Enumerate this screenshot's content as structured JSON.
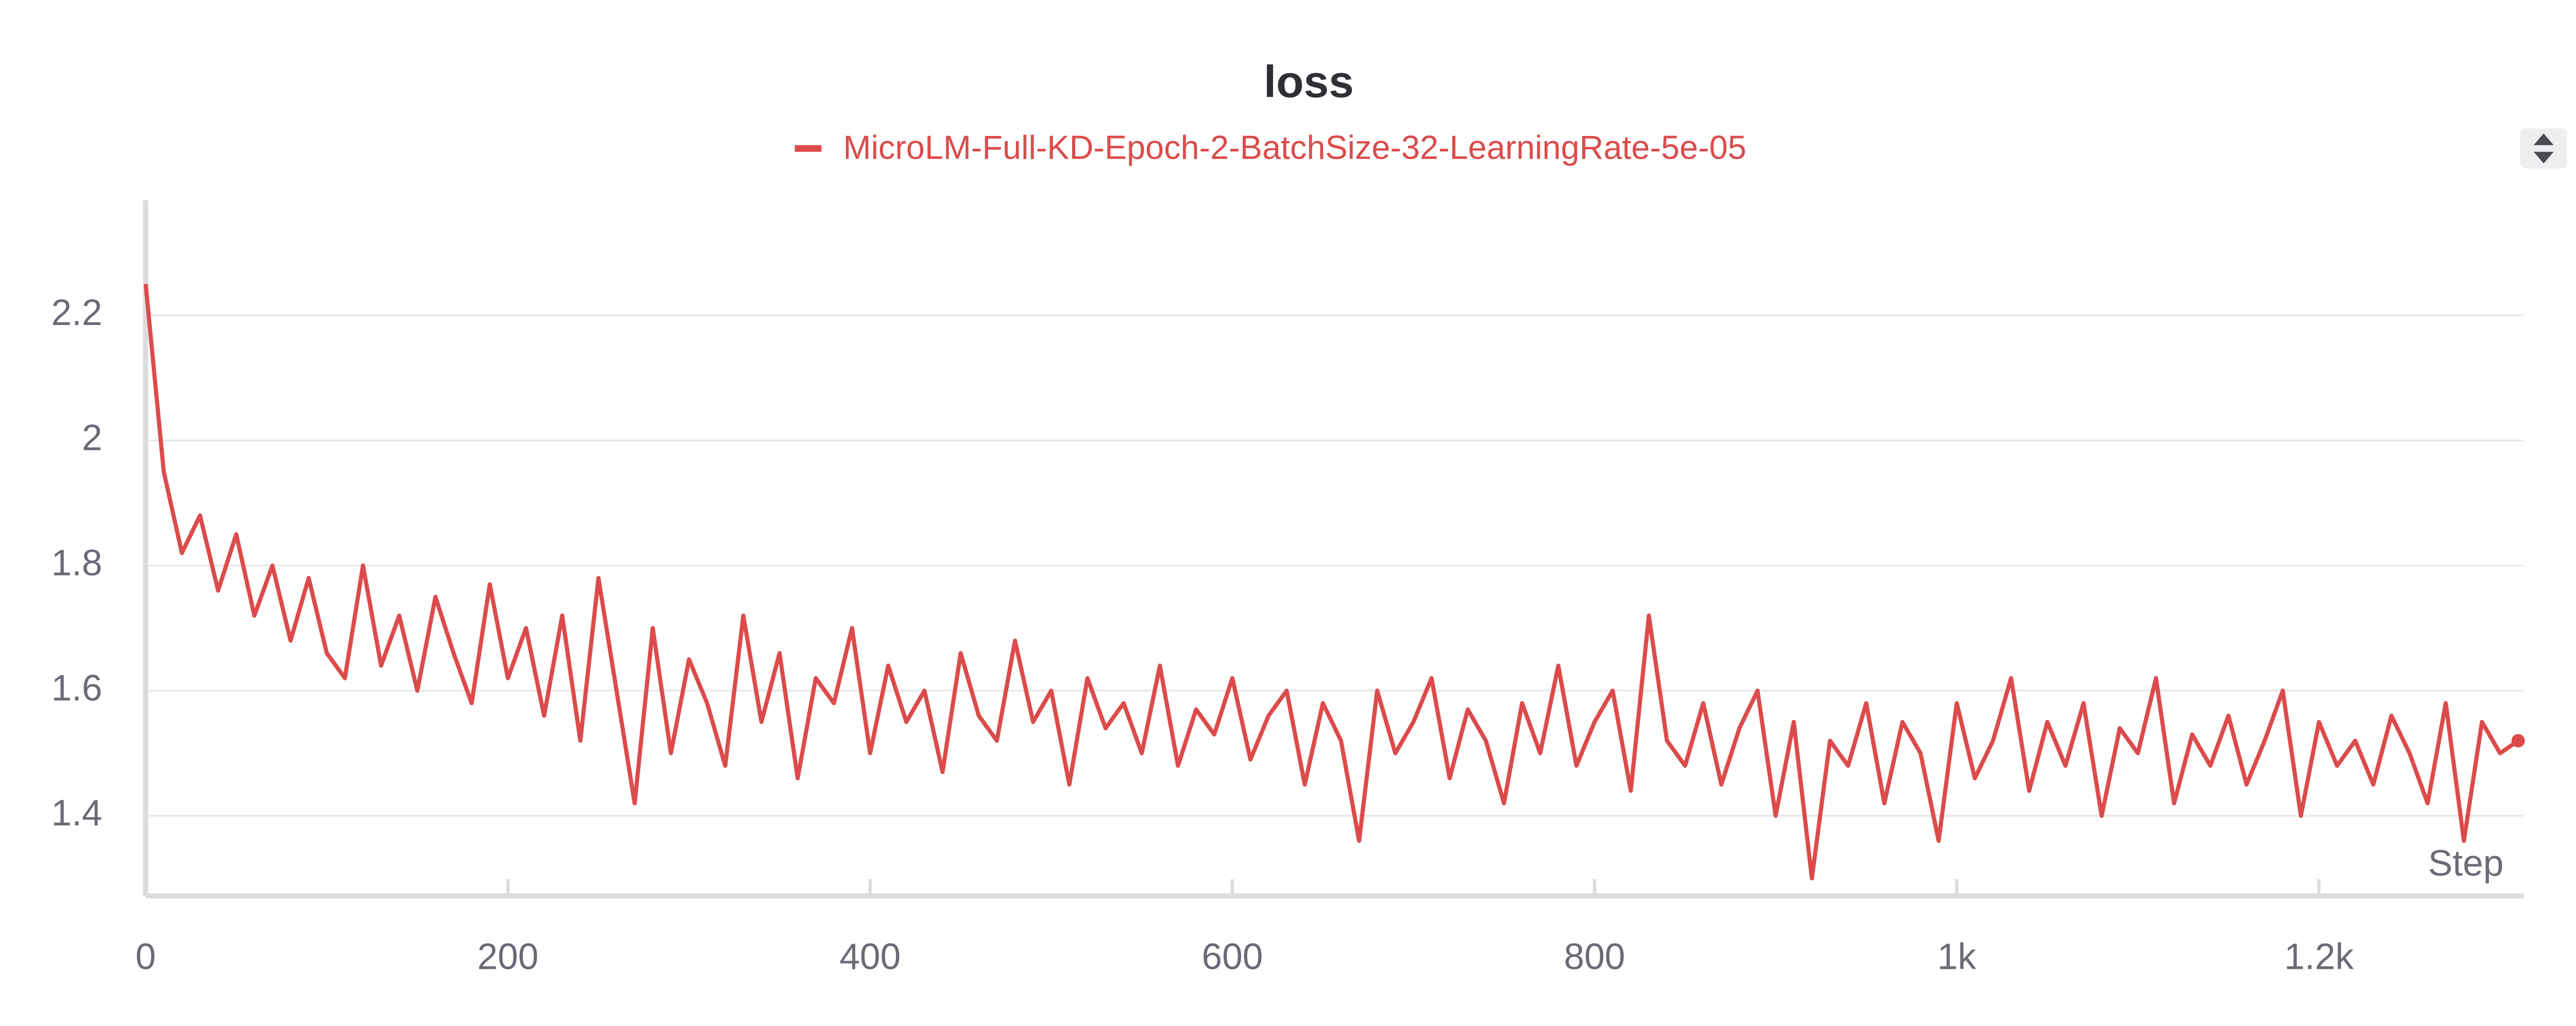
{
  "chart_data": {
    "type": "line",
    "title": "loss",
    "x_label": "Step",
    "x": [
      0,
      10,
      20,
      30,
      40,
      50,
      60,
      70,
      80,
      90,
      100,
      110,
      120,
      130,
      140,
      150,
      160,
      170,
      180,
      190,
      200,
      210,
      220,
      230,
      240,
      250,
      260,
      270,
      280,
      290,
      300,
      310,
      320,
      330,
      340,
      350,
      360,
      370,
      380,
      390,
      400,
      410,
      420,
      430,
      440,
      450,
      460,
      470,
      480,
      490,
      500,
      510,
      520,
      530,
      540,
      550,
      560,
      570,
      580,
      590,
      600,
      610,
      620,
      630,
      640,
      650,
      660,
      670,
      680,
      690,
      700,
      710,
      720,
      730,
      740,
      750,
      760,
      770,
      780,
      790,
      800,
      810,
      820,
      830,
      840,
      850,
      860,
      870,
      880,
      890,
      900,
      910,
      920,
      930,
      940,
      950,
      960,
      970,
      980,
      990,
      1000,
      1010,
      1020,
      1030,
      1040,
      1050,
      1060,
      1070,
      1080,
      1090,
      1100,
      1110,
      1120,
      1130,
      1140,
      1150,
      1160,
      1170,
      1180,
      1190,
      1200,
      1210,
      1220,
      1230,
      1240,
      1250,
      1260,
      1270,
      1280,
      1290,
      1300,
      1310
    ],
    "series": [
      {
        "name": "MicroLM-Full-KD-Epoch-2-BatchSize-32-LearningRate-5e-05",
        "color": "#dc4b4b",
        "values": [
          2.25,
          1.95,
          1.82,
          1.88,
          1.76,
          1.85,
          1.72,
          1.8,
          1.68,
          1.78,
          1.66,
          1.62,
          1.8,
          1.64,
          1.72,
          1.6,
          1.75,
          1.66,
          1.58,
          1.77,
          1.62,
          1.7,
          1.56,
          1.72,
          1.52,
          1.78,
          1.6,
          1.42,
          1.7,
          1.5,
          1.65,
          1.58,
          1.48,
          1.72,
          1.55,
          1.66,
          1.46,
          1.62,
          1.58,
          1.7,
          1.5,
          1.64,
          1.55,
          1.6,
          1.47,
          1.66,
          1.56,
          1.52,
          1.68,
          1.55,
          1.6,
          1.45,
          1.62,
          1.54,
          1.58,
          1.5,
          1.64,
          1.48,
          1.57,
          1.53,
          1.62,
          1.49,
          1.56,
          1.6,
          1.45,
          1.58,
          1.52,
          1.36,
          1.6,
          1.5,
          1.55,
          1.62,
          1.46,
          1.57,
          1.52,
          1.42,
          1.58,
          1.5,
          1.64,
          1.48,
          1.55,
          1.6,
          1.44,
          1.72,
          1.52,
          1.48,
          1.58,
          1.45,
          1.54,
          1.6,
          1.4,
          1.55,
          1.3,
          1.52,
          1.48,
          1.58,
          1.42,
          1.55,
          1.5,
          1.36,
          1.58,
          1.46,
          1.52,
          1.62,
          1.44,
          1.55,
          1.48,
          1.58,
          1.4,
          1.54,
          1.5,
          1.62,
          1.42,
          1.53,
          1.48,
          1.56,
          1.45,
          1.52,
          1.6,
          1.4,
          1.55,
          1.48,
          1.52,
          1.45,
          1.56,
          1.5,
          1.42,
          1.58,
          1.36,
          1.55,
          1.5,
          1.52
        ]
      }
    ],
    "xlim": [
      0,
      1313
    ],
    "ylim": [
      1.272,
      2.384
    ],
    "xticks": [
      0,
      200,
      400,
      600,
      800,
      {
        "value": 1000,
        "label": "1k"
      },
      {
        "value": 1200,
        "label": "1.2k"
      }
    ],
    "yticks": [
      1.4,
      1.6,
      1.8,
      2,
      2.2
    ],
    "grid": true
  }
}
